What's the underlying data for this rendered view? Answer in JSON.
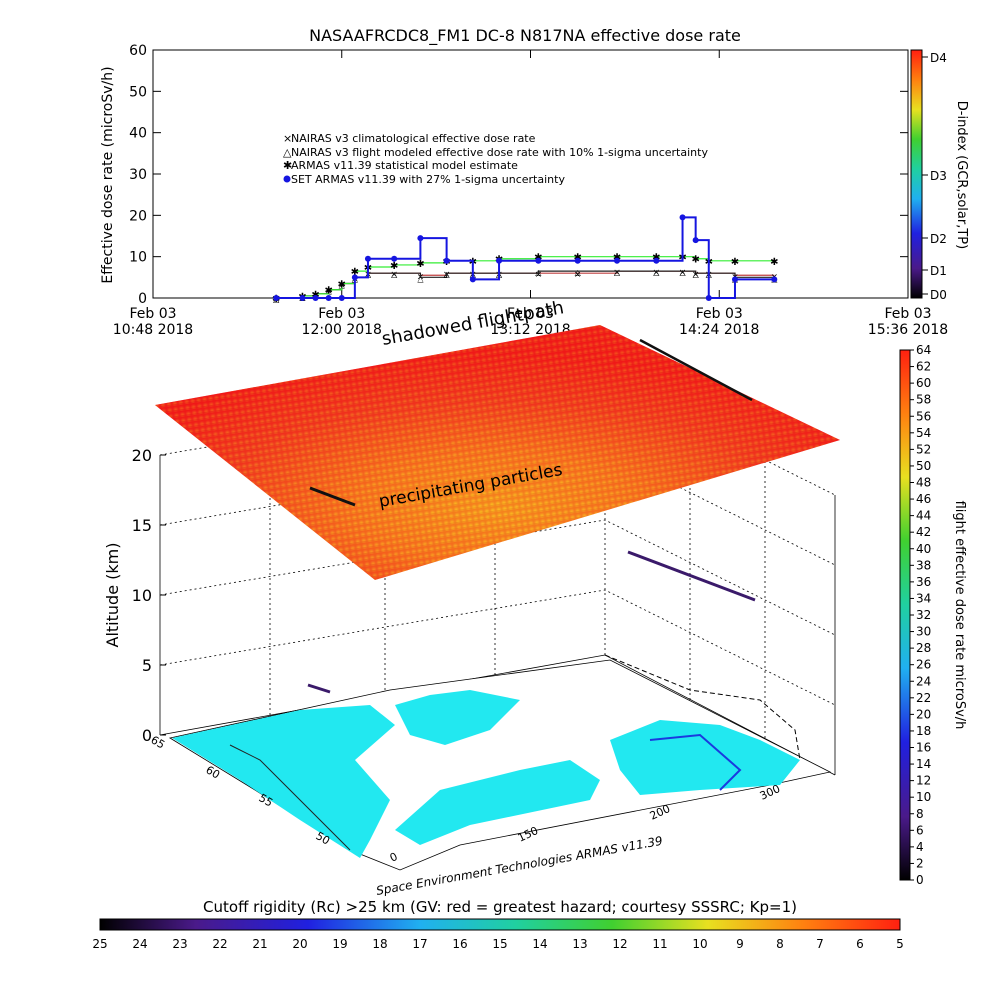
{
  "title": "NASAAFRCDC8_FM1 DC-8   N817NA effective dose rate",
  "colors": {
    "nairas_clim": "#c04040",
    "nairas_flight": "#202020",
    "armas_stat": "#33ee33",
    "set_armas": "#1515e0",
    "ocean": "#ffffff",
    "land": "#22e8f0",
    "border": "#111111"
  },
  "top_panel": {
    "ylabel": "Effective dose rate (microSv/h)",
    "ytick_labels": [
      "0",
      "10",
      "20",
      "30",
      "40",
      "50",
      "60"
    ],
    "xtick_labels": [
      [
        "Feb 03",
        "10:48 2018"
      ],
      [
        "Feb 03",
        "12:00 2018"
      ],
      [
        "Feb 03",
        "13:12 2018"
      ],
      [
        "Feb 03",
        "14:24 2018"
      ],
      [
        "Feb 03",
        "15:36 2018"
      ]
    ],
    "legend": [
      "NAIRAS v3 climatological effective dose rate",
      "NAIRAS v3 flight modeled effective dose rate with 10% 1-sigma uncertainty",
      "ARMAS v11.39 statistical model estimate",
      "SET ARMAS v11.39 with 27% 1-sigma uncertainty"
    ],
    "right_axis_label": "D-index (GCR,solar,TP)",
    "dindex_labels": [
      "D0",
      "D1",
      "D2",
      "D3",
      "D4"
    ]
  },
  "chart_data": [
    {
      "type": "line",
      "title": "NASAAFRCDC8_FM1 DC-8   N817NA effective dose rate",
      "xlabel": "",
      "ylabel": "Effective dose rate (microSv/h)",
      "x_unit": "time (UTC, Feb 03 2018)",
      "xlim": [
        "10:48",
        "15:36"
      ],
      "ylim": [
        0,
        60
      ],
      "x": [
        "11:35",
        "11:45",
        "11:50",
        "11:55",
        "12:00",
        "12:05",
        "12:10",
        "12:20",
        "12:30",
        "12:40",
        "12:50",
        "13:00",
        "13:15",
        "13:30",
        "13:45",
        "14:00",
        "14:10",
        "14:15",
        "14:20",
        "14:30",
        "14:45"
      ],
      "series": [
        {
          "name": "NAIRAS v3 climatological effective dose rate",
          "values": [
            0,
            0.5,
            1,
            2,
            3.5,
            5,
            6,
            6,
            5.5,
            6,
            6,
            6,
            6,
            6,
            6.5,
            6.5,
            6.5,
            6,
            6,
            5.5,
            5.5
          ]
        },
        {
          "name": "NAIRAS v3 flight modeled effective dose rate with 10% 1-sigma uncertainty",
          "values": [
            0,
            0.5,
            1,
            2,
            3.5,
            5,
            6,
            6,
            5,
            6,
            6,
            6,
            6.5,
            6.5,
            6.5,
            6.5,
            6.5,
            6,
            6,
            5,
            5
          ]
        },
        {
          "name": "ARMAS v11.39 statistical model estimate",
          "values": [
            0,
            0.5,
            1,
            2,
            3.5,
            6.5,
            7.5,
            8,
            8.5,
            9,
            9,
            9.5,
            10,
            10,
            10,
            10,
            10,
            9.5,
            9,
            9,
            9
          ]
        },
        {
          "name": "SET ARMAS v11.39 with 27% 1-sigma uncertainty",
          "values": [
            0,
            0,
            0,
            0,
            0,
            5,
            9.5,
            9.5,
            14.5,
            9,
            4.5,
            9,
            9,
            9,
            9,
            9,
            19.5,
            14,
            0,
            4.5,
            4.5
          ]
        }
      ],
      "grid": false,
      "legend_placement": "center"
    },
    {
      "type": "scatter",
      "subtype": "3d-flight-track",
      "zlabel": "Altitude (km)",
      "zlim": [
        0,
        20
      ],
      "ztick_labels": [
        "0",
        "5",
        "10",
        "15",
        "20"
      ],
      "lat_tick_labels": [
        "65",
        "60",
        "55",
        "50"
      ],
      "lon_tick_labels": [
        "0",
        "150",
        "200",
        "300"
      ],
      "colorbar_label": "flight effective dose rate microSv/h",
      "colorbar_range": [
        0,
        64
      ],
      "annotations": [
        "shadowed flightpath",
        "precipitating particles"
      ],
      "grid": true
    }
  ],
  "three_d": {
    "zlabel": "Altitude (km)",
    "ztick_labels": [
      "0",
      "5",
      "10",
      "15",
      "20"
    ],
    "lat_tick_labels": [
      "65",
      "60",
      "55",
      "50"
    ],
    "lon_tick_labels": [
      "0",
      "150",
      "200",
      "300"
    ],
    "annotation_shadowed": "shadowed flightpath",
    "annotation_precip": "precipitating particles",
    "credit": "Space Environment Technologies ARMAS v11.39"
  },
  "right_colorbar": {
    "label": "flight effective dose rate microSv/h",
    "tick_labels": [
      "0",
      "2",
      "4",
      "6",
      "8",
      "10",
      "12",
      "14",
      "16",
      "18",
      "20",
      "22",
      "24",
      "26",
      "28",
      "30",
      "32",
      "34",
      "36",
      "38",
      "40",
      "42",
      "44",
      "46",
      "48",
      "50",
      "52",
      "54",
      "56",
      "58",
      "60",
      "62",
      "64"
    ]
  },
  "bottom_colorbar": {
    "title": "Cutoff rigidity (Rc) >25 km (GV: red = greatest hazard; courtesy SSSRC; Kp=1)",
    "tick_labels": [
      "25",
      "24",
      "23",
      "22",
      "21",
      "20",
      "19",
      "18",
      "17",
      "16",
      "15",
      "14",
      "13",
      "12",
      "11",
      "10",
      "9",
      "8",
      "7",
      "6",
      "5"
    ]
  }
}
